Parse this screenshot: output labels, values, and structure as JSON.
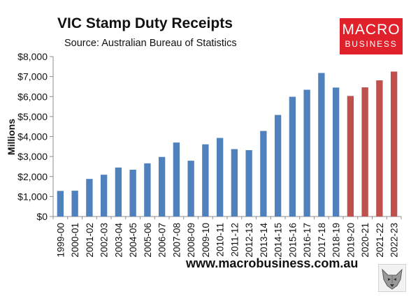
{
  "header": {
    "title": "VIC Stamp Duty Receipts",
    "source": "Source: Australian Bureau of Statistics"
  },
  "logo": {
    "line1": "MACRO",
    "line2": "BUSINESS",
    "color": "#e0202b"
  },
  "footer": {
    "url": "www.macrobusiness.com.au",
    "mascot_icon": "wolf-icon"
  },
  "chart_data": {
    "type": "bar",
    "title": "VIC Stamp Duty Receipts",
    "xlabel": "",
    "ylabel": "Millions",
    "ylim": [
      0,
      8000
    ],
    "yticks": [
      0,
      1000,
      2000,
      3000,
      4000,
      5000,
      6000,
      7000,
      8000
    ],
    "ytick_labels": [
      "$0",
      "$1,000",
      "$2,000",
      "$3,000",
      "$4,000",
      "$5,000",
      "$6,000",
      "$7,000",
      "$8,000"
    ],
    "grid": false,
    "legend": "none",
    "categories": [
      "1999-00",
      "2000-01",
      "2001-02",
      "2002-03",
      "2003-04",
      "2004-05",
      "2005-06",
      "2006-07",
      "2007-08",
      "2008-09",
      "2009-10",
      "2010-11",
      "2011-12",
      "2012-13",
      "2013-14",
      "2014-15",
      "2015-16",
      "2016-17",
      "2017-18",
      "2018-19",
      "2019-20",
      "2020-21",
      "2021-22",
      "2022-23"
    ],
    "values": [
      1280,
      1290,
      1880,
      2090,
      2450,
      2340,
      2660,
      2980,
      3700,
      2790,
      3610,
      3930,
      3370,
      3320,
      4280,
      5080,
      5990,
      6340,
      7180,
      6450,
      6030,
      6460,
      6810,
      7250
    ],
    "bar_colors": [
      "#4f81bd",
      "#4f81bd",
      "#4f81bd",
      "#4f81bd",
      "#4f81bd",
      "#4f81bd",
      "#4f81bd",
      "#4f81bd",
      "#4f81bd",
      "#4f81bd",
      "#4f81bd",
      "#4f81bd",
      "#4f81bd",
      "#4f81bd",
      "#4f81bd",
      "#4f81bd",
      "#4f81bd",
      "#4f81bd",
      "#4f81bd",
      "#4f81bd",
      "#c0504d",
      "#c0504d",
      "#c0504d",
      "#c0504d"
    ]
  }
}
